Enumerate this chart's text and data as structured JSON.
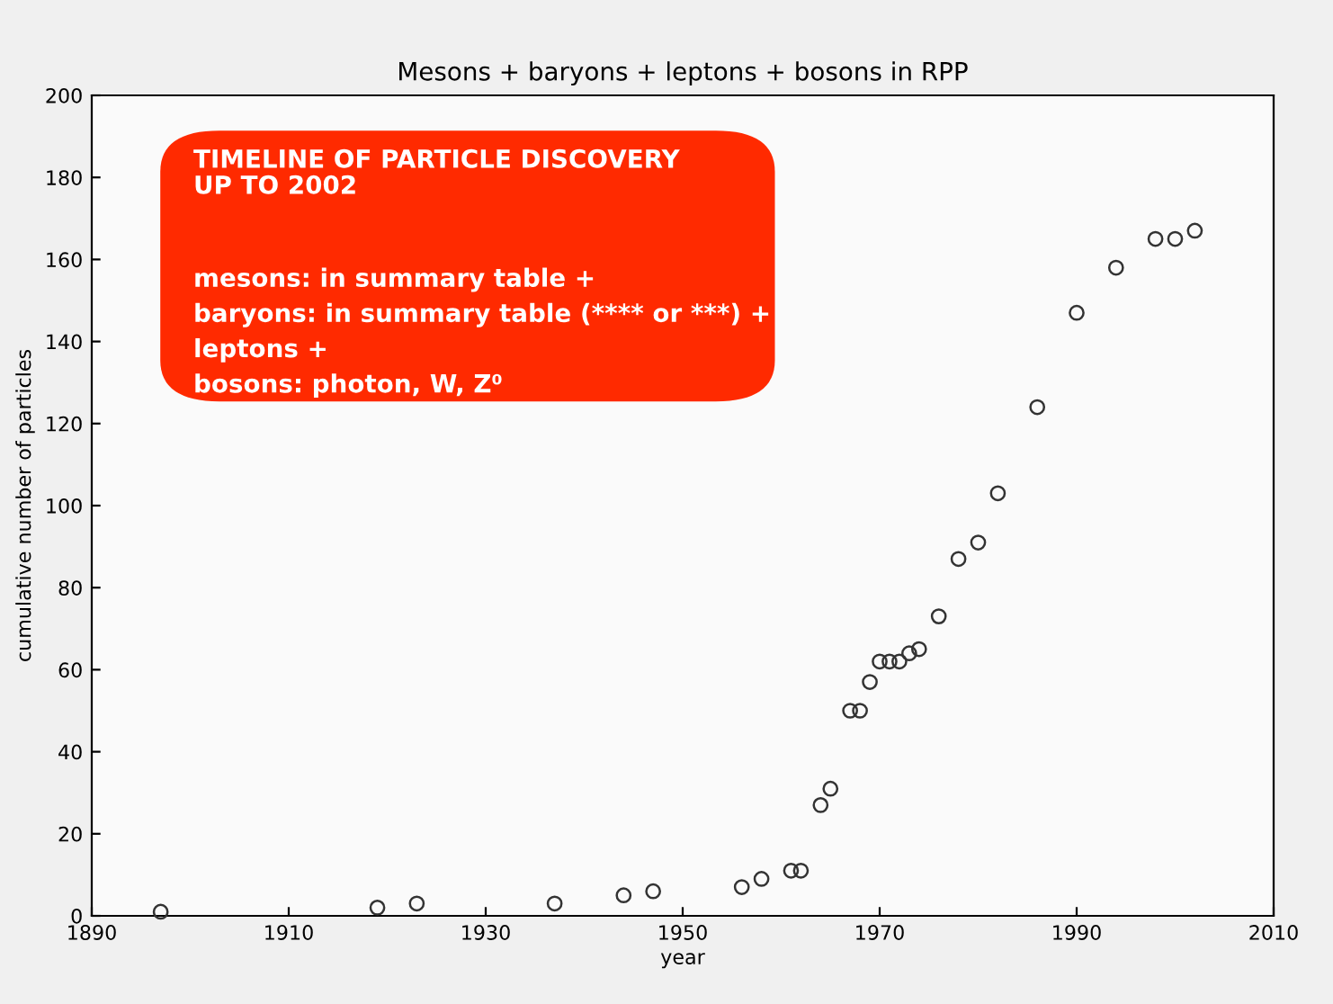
{
  "chart_data": {
    "type": "scatter",
    "title": "Mesons + baryons + leptons + bosons in RPP",
    "xlabel": "year",
    "ylabel": "cumulative number of particles",
    "x": [
      1897,
      1919,
      1923,
      1937,
      1944,
      1947,
      1956,
      1958,
      1961,
      1962,
      1964,
      1965,
      1967,
      1968,
      1969,
      1970,
      1971,
      1972,
      1973,
      1974,
      1976,
      1978,
      1980,
      1982,
      1986,
      1990,
      1994,
      1998,
      2000,
      2002
    ],
    "values": [
      1,
      2,
      3,
      3,
      5,
      6,
      7,
      9,
      11,
      11,
      27,
      31,
      50,
      50,
      57,
      62,
      62,
      62,
      64,
      65,
      73,
      87,
      91,
      103,
      124,
      147,
      158,
      165,
      165,
      167
    ],
    "color": "#333333",
    "marker": "circle",
    "xlim": [
      1890,
      2010
    ],
    "xticks": [
      1890,
      1910,
      1930,
      1950,
      1970,
      1990,
      2010
    ],
    "ylim": [
      0,
      200
    ],
    "yticks": [
      0,
      20,
      40,
      60,
      80,
      100,
      120,
      140,
      160,
      180,
      200
    ],
    "grid": false,
    "annotations": [
      "TIMELINE OF PARTICLE DISCOVERY\nUP TO 2002",
      "mesons: in summary table +",
      "baryons: in summary table (**** or ***) +",
      "leptons +",
      "bosons: photon, W, Z⁰"
    ]
  }
}
